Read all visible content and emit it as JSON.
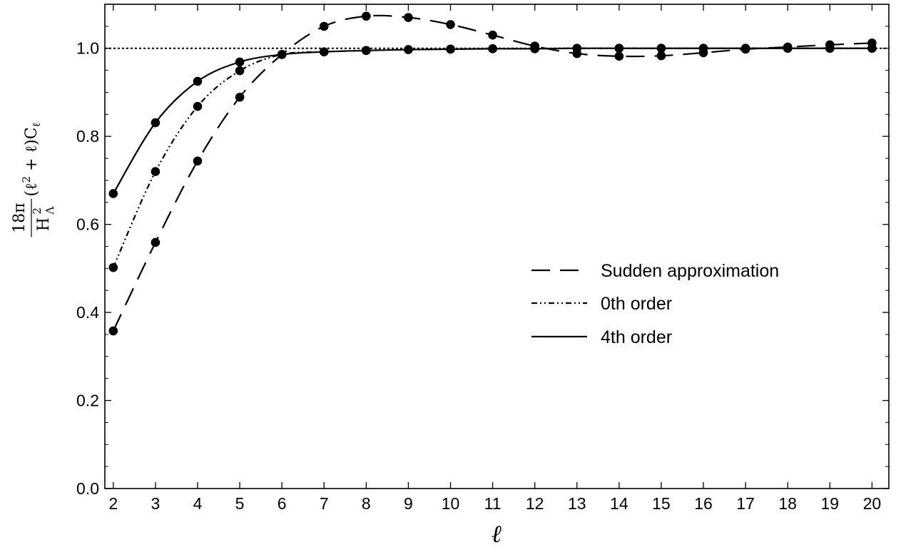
{
  "chart_data": {
    "type": "line",
    "xlabel": "ℓ",
    "ylabel": {
      "numerator": "18π",
      "denominator_base": "H",
      "denominator_sup": "2",
      "denominator_sub": "Λ",
      "rest": "(ℓ",
      "rest_sup": "2",
      "rest_tail": " + ℓ)C",
      "rest_sub": "ℓ"
    },
    "xlim": [
      1.8,
      20.4
    ],
    "ylim": [
      0.0,
      1.1
    ],
    "x_ticks": [
      2,
      3,
      4,
      5,
      6,
      7,
      8,
      9,
      10,
      11,
      12,
      13,
      14,
      15,
      16,
      17,
      18,
      19,
      20
    ],
    "y_ticks": [
      0.0,
      0.2,
      0.4,
      0.6,
      0.8,
      1.0
    ],
    "x_tick_labels": [
      "2",
      "3",
      "4",
      "5",
      "6",
      "7",
      "8",
      "9",
      "10",
      "11",
      "12",
      "13",
      "14",
      "15",
      "16",
      "17",
      "18",
      "19",
      "20"
    ],
    "y_tick_labels": [
      "0.0",
      "0.2",
      "0.4",
      "0.6",
      "0.8",
      "1.0"
    ],
    "reference_line": 1.0,
    "legend_position": "center-right",
    "series": [
      {
        "name": "Sudden approximation",
        "style": "dashed",
        "x": [
          2,
          3,
          4,
          5,
          6,
          7,
          8,
          9,
          10,
          11,
          12,
          13,
          14,
          15,
          16,
          17,
          18,
          19,
          20
        ],
        "values": [
          0.358,
          0.559,
          0.744,
          0.889,
          0.986,
          1.05,
          1.073,
          1.07,
          1.054,
          1.03,
          1.005,
          0.988,
          0.982,
          0.983,
          0.99,
          0.998,
          1.003,
          1.008,
          1.012
        ]
      },
      {
        "name": "0th order",
        "style": "dashdotdot",
        "x": [
          2,
          3,
          4,
          5,
          6,
          7,
          8,
          9,
          10,
          11,
          12,
          13,
          14,
          15,
          16,
          17,
          18,
          19,
          20
        ],
        "values": [
          0.502,
          0.72,
          0.868,
          0.949,
          0.986,
          0.992,
          0.995,
          0.997,
          0.998,
          0.999,
          0.999,
          1.0,
          1.0,
          1.0,
          1.0,
          1.0,
          1.0,
          1.0,
          1.0
        ]
      },
      {
        "name": "4th order",
        "style": "solid",
        "x": [
          2,
          3,
          4,
          5,
          6,
          7,
          8,
          9,
          10,
          11,
          12,
          13,
          14,
          15,
          16,
          17,
          18,
          19,
          20
        ],
        "values": [
          0.67,
          0.831,
          0.925,
          0.969,
          0.986,
          0.992,
          0.995,
          0.997,
          0.998,
          0.999,
          0.999,
          1.0,
          1.0,
          1.0,
          1.0,
          1.0,
          1.0,
          1.0,
          1.0
        ]
      }
    ]
  }
}
